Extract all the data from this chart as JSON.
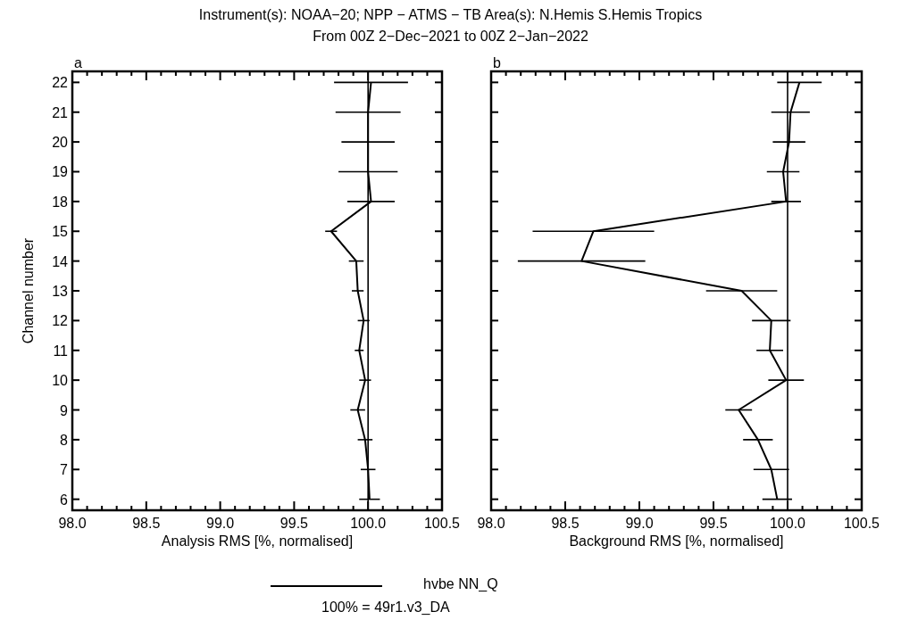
{
  "chart_data": [
    {
      "type": "line",
      "orientation": "horizontal",
      "title": "Instrument(s): NOAA−20; NPP − ATMS − TB      Area(s): N.Hemis S.Hemis Tropics",
      "subtitle": "From 00Z  2−Dec−2021 to 00Z  2−Jan−2022",
      "xlabel": "Analysis RMS [%, normalised]",
      "ylabel": "Channel number",
      "categories": [
        "22",
        "21",
        "20",
        "19",
        "18",
        "15",
        "14",
        "13",
        "12",
        "11",
        "10",
        "9",
        "8",
        "7",
        "6"
      ],
      "series": [
        {
          "name": "hvbe NN_Q",
          "color": "#000000",
          "values": [
            100.02,
            100.0,
            100.0,
            100.0,
            100.02,
            99.75,
            99.92,
            99.93,
            99.97,
            99.94,
            99.98,
            99.93,
            99.98,
            100.0,
            100.01
          ],
          "errors": [
            0.25,
            0.22,
            0.18,
            0.2,
            0.16,
            0.04,
            0.05,
            0.04,
            0.04,
            0.03,
            0.04,
            0.05,
            0.05,
            0.05,
            0.07
          ]
        }
      ],
      "xlim": [
        98.0,
        100.5
      ],
      "xticks": [
        {
          "value": 98.0,
          "label": "98.0"
        },
        {
          "value": 98.1,
          "label": null
        },
        {
          "value": 98.2,
          "label": null
        },
        {
          "value": 98.3,
          "label": null
        },
        {
          "value": 98.4,
          "label": null
        },
        98.5,
        {
          "value": 98.6,
          "label": null
        },
        {
          "value": 98.7,
          "label": null
        },
        {
          "value": 98.8,
          "label": null
        },
        {
          "value": 98.9,
          "label": null
        },
        {
          "value": 99.0,
          "label": "99.0"
        },
        {
          "value": 99.1,
          "label": null
        },
        {
          "value": 99.2,
          "label": null
        },
        {
          "value": 99.3,
          "label": null
        },
        {
          "value": 99.4,
          "label": null
        },
        99.5,
        {
          "value": 99.6,
          "label": null
        },
        {
          "value": 99.7,
          "label": null
        },
        {
          "value": 99.8,
          "label": null
        },
        {
          "value": 99.9,
          "label": null
        },
        {
          "value": 100.0,
          "label": "100.0"
        },
        {
          "value": 100.1,
          "label": null
        },
        {
          "value": 100.2,
          "label": null
        },
        {
          "value": 100.3,
          "label": null
        },
        {
          "value": 100.4,
          "label": null
        },
        100.5
      ],
      "ref_lines": [
        {
          "axis": "x",
          "value": 100.0,
          "color": "#000000"
        }
      ],
      "annotations": [
        "a",
        "100% = 49r1.v3_DA"
      ],
      "legend": "bottom",
      "marker": "none",
      "line_style": "solid",
      "grid": false
    },
    {
      "type": "line",
      "orientation": "horizontal",
      "xlabel": "Background RMS [%, normalised]",
      "categories": [
        "22",
        "21",
        "20",
        "19",
        "18",
        "15",
        "14",
        "13",
        "12",
        "11",
        "10",
        "9",
        "8",
        "7",
        "6"
      ],
      "series": [
        {
          "color": "#000000",
          "values": [
            100.08,
            100.02,
            100.01,
            99.97,
            99.99,
            98.69,
            98.61,
            99.69,
            99.89,
            99.88,
            99.99,
            99.67,
            99.8,
            99.89,
            99.93
          ],
          "errors": [
            0.15,
            0.13,
            0.11,
            0.11,
            0.1,
            0.41,
            0.43,
            0.24,
            0.13,
            0.09,
            0.12,
            0.09,
            0.1,
            0.12,
            0.1
          ]
        }
      ],
      "xlim": [
        98.0,
        100.5
      ],
      "xticks": [
        {
          "value": 98.0,
          "label": "98.0"
        },
        {
          "value": 98.1,
          "label": null
        },
        {
          "value": 98.2,
          "label": null
        },
        {
          "value": 98.3,
          "label": null
        },
        {
          "value": 98.4,
          "label": null
        },
        98.5,
        {
          "value": 98.6,
          "label": null
        },
        {
          "value": 98.7,
          "label": null
        },
        {
          "value": 98.8,
          "label": null
        },
        {
          "value": 98.9,
          "label": null
        },
        {
          "value": 99.0,
          "label": "99.0"
        },
        {
          "value": 99.1,
          "label": null
        },
        {
          "value": 99.2,
          "label": null
        },
        {
          "value": 99.3,
          "label": null
        },
        {
          "value": 99.4,
          "label": null
        },
        99.5,
        {
          "value": 99.6,
          "label": null
        },
        {
          "value": 99.7,
          "label": null
        },
        {
          "value": 99.8,
          "label": null
        },
        {
          "value": 99.9,
          "label": null
        },
        {
          "value": 100.0,
          "label": "100.0"
        },
        {
          "value": 100.1,
          "label": null
        },
        {
          "value": 100.2,
          "label": null
        },
        {
          "value": 100.3,
          "label": null
        },
        {
          "value": 100.4,
          "label": null
        },
        100.5
      ],
      "ref_lines": [
        {
          "axis": "x",
          "value": 100.0,
          "color": "#000000"
        }
      ],
      "annotations": [
        "b"
      ],
      "tick_labels": "x",
      "marker": "none",
      "line_style": "solid",
      "grid": false
    }
  ]
}
